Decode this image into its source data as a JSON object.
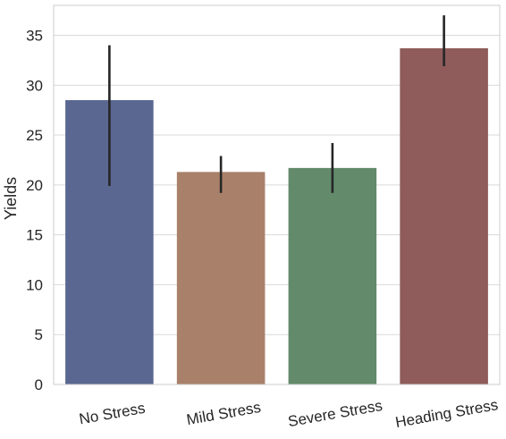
{
  "chart_data": {
    "type": "bar",
    "categories": [
      "No Stress",
      "Mild Stress",
      "Severe Stress",
      "Heading Stress"
    ],
    "values": [
      28.5,
      21.3,
      21.7,
      33.7
    ],
    "error_low": [
      19.9,
      19.2,
      19.2,
      31.9
    ],
    "error_high": [
      34.0,
      22.9,
      24.2,
      37.0
    ],
    "colors": [
      "#5a6791",
      "#a98069",
      "#628a6b",
      "#8f5b5b"
    ],
    "error_color": "#262626",
    "title": "",
    "xlabel": "",
    "ylabel": "Yields",
    "ylim": [
      0,
      38
    ],
    "yticks": [
      0,
      5,
      10,
      15,
      20,
      25,
      30,
      35
    ],
    "grid": true,
    "xtick_rotation_deg": -10
  }
}
